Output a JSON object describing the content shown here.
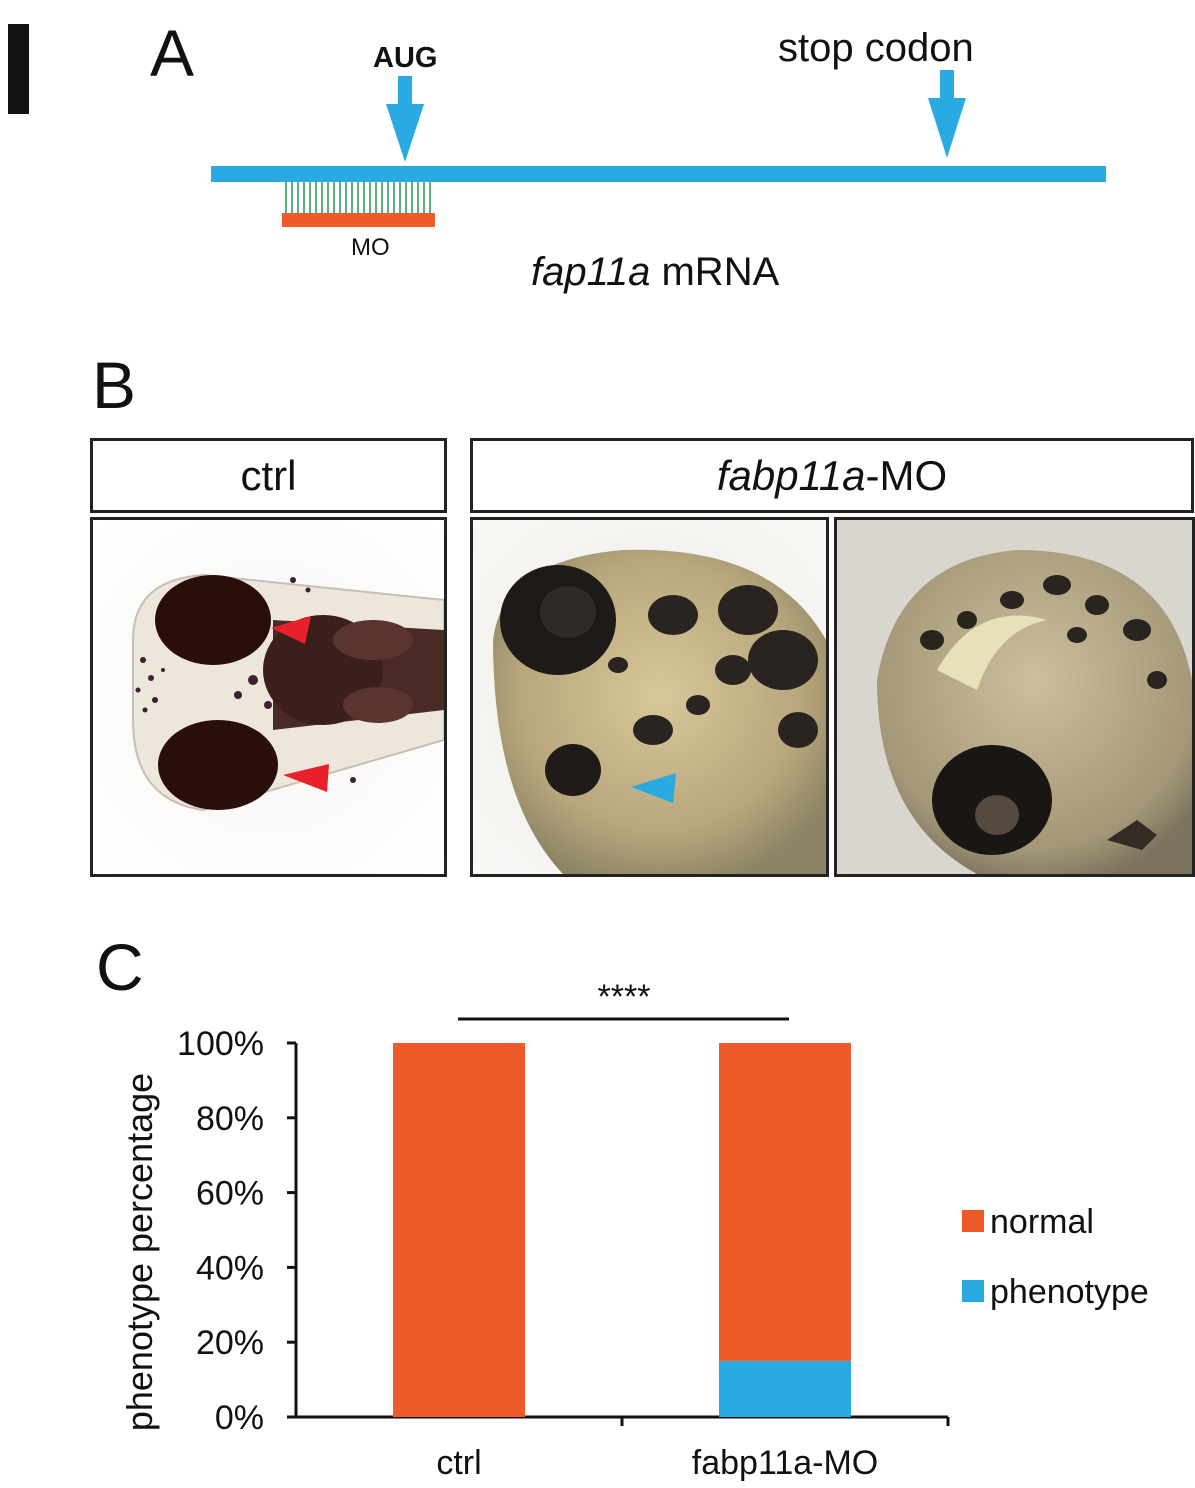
{
  "panel_a": {
    "letter": "A",
    "aug_label": "AUG",
    "stop_label": "stop codon",
    "mo_label": "MO",
    "gene_italic": "fap11a",
    "gene_suffix": " mRNA",
    "colors": {
      "mrna_line": "#29abe2",
      "morpholino": "#f05a28",
      "binding": "#2e9e5b"
    }
  },
  "panel_b": {
    "letter": "B",
    "headers": {
      "ctrl": "ctrl",
      "mo_italic": "fabp11a",
      "mo_suffix": "-MO"
    },
    "images": [
      {
        "label": "ctrl dorsal view",
        "arrowheads": "red"
      },
      {
        "label": "fabp11a-MO lateral view",
        "arrowheads": "blue"
      },
      {
        "label": "fabp11a-MO lateral view 2",
        "arrowheads": "none"
      }
    ]
  },
  "panel_c": {
    "letter": "C",
    "significance": "****",
    "chart_data": {
      "type": "bar",
      "stacked": true,
      "categories": [
        "ctrl",
        "fabp11a-MO"
      ],
      "series": [
        {
          "name": "phenotype",
          "color": "#29abe2",
          "values": [
            0,
            15
          ]
        },
        {
          "name": "normal",
          "color": "#f05a28",
          "values": [
            100,
            85
          ]
        }
      ],
      "ylabel": "phenotype percentage",
      "ylim": [
        0,
        100
      ],
      "yticks": [
        "0%",
        "20%",
        "40%",
        "60%",
        "80%",
        "100%"
      ],
      "legend": [
        "normal",
        "phenotype"
      ],
      "legend_position": "right",
      "grid": false
    }
  }
}
